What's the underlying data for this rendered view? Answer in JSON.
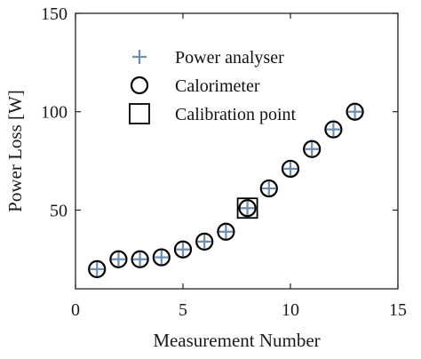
{
  "chart_data": {
    "type": "scatter",
    "xlabel": "Measurement Number",
    "ylabel": "Power Loss [W]",
    "xlim": [
      0,
      15
    ],
    "ylim": [
      10,
      150
    ],
    "xticks": [
      0,
      5,
      10,
      15
    ],
    "yticks": [
      50,
      100,
      150
    ],
    "grid": false,
    "legend_position": "upper-left",
    "series": [
      {
        "name": "Power analyser",
        "marker": "plus",
        "color": "#6f8eae",
        "x": [
          1,
          2,
          3,
          4,
          5,
          6,
          7,
          8,
          9,
          10,
          11,
          12,
          13
        ],
        "y": [
          20,
          25,
          25,
          26,
          30,
          34,
          39,
          51,
          61,
          71,
          81,
          91,
          100
        ]
      },
      {
        "name": "Calorimeter",
        "marker": "circle",
        "color": "#000000",
        "x": [
          1,
          2,
          3,
          4,
          5,
          6,
          7,
          8,
          9,
          10,
          11,
          12,
          13
        ],
        "y": [
          20,
          25,
          25,
          26,
          30,
          34,
          39,
          51,
          61,
          71,
          81,
          91,
          100
        ]
      },
      {
        "name": "Calibration point",
        "marker": "square",
        "color": "#000000",
        "x": [
          8
        ],
        "y": [
          51
        ]
      }
    ]
  }
}
